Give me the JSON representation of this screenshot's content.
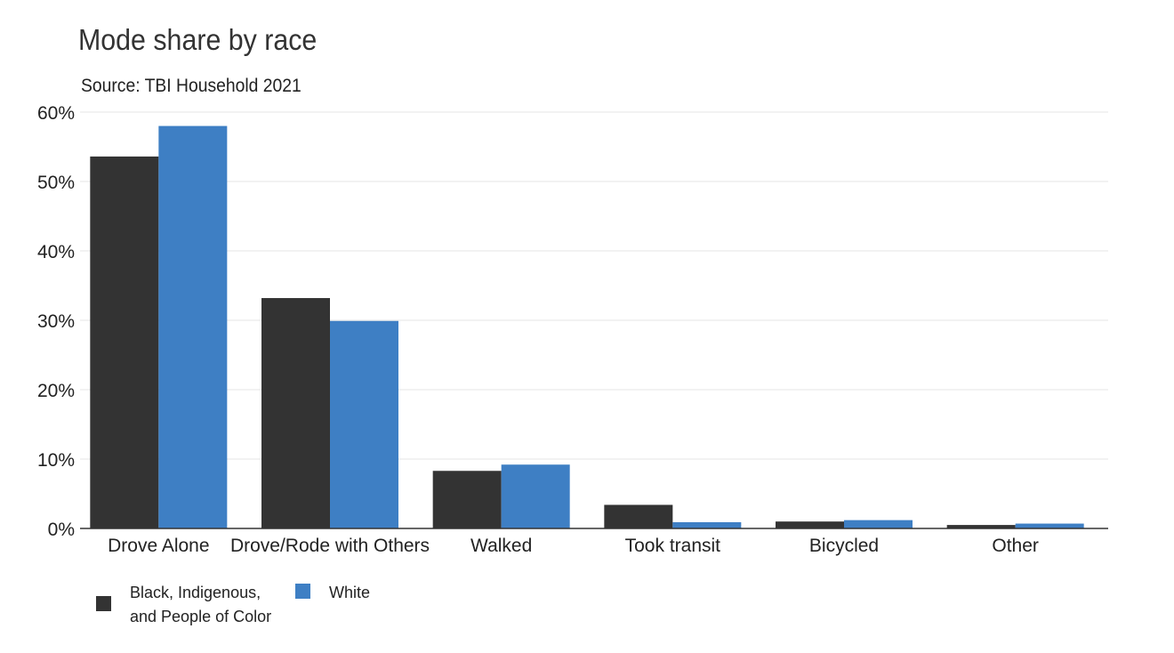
{
  "chart_data": {
    "type": "bar",
    "title": "Mode share by race",
    "subtitle": "Source: TBI Household 2021",
    "categories": [
      "Drove Alone",
      "Drove/Rode with Others",
      "Walked",
      "Took transit",
      "Bicycled",
      "Other"
    ],
    "series": [
      {
        "name": "Black, Indigenous, and People of Color",
        "color": "#333333",
        "values": [
          53.6,
          33.2,
          8.3,
          3.4,
          1.0,
          0.5
        ]
      },
      {
        "name": "White",
        "color": "#3e7fc4",
        "values": [
          58.0,
          29.9,
          9.2,
          0.9,
          1.2,
          0.7
        ]
      }
    ],
    "ylim": [
      0,
      60
    ],
    "yticks": [
      0,
      10,
      20,
      30,
      40,
      50,
      60
    ],
    "ytick_labels": [
      "0%",
      "10%",
      "20%",
      "30%",
      "40%",
      "50%",
      "60%"
    ],
    "xlabel": "",
    "ylabel": "",
    "grid": true,
    "legend": "bottom-left"
  }
}
